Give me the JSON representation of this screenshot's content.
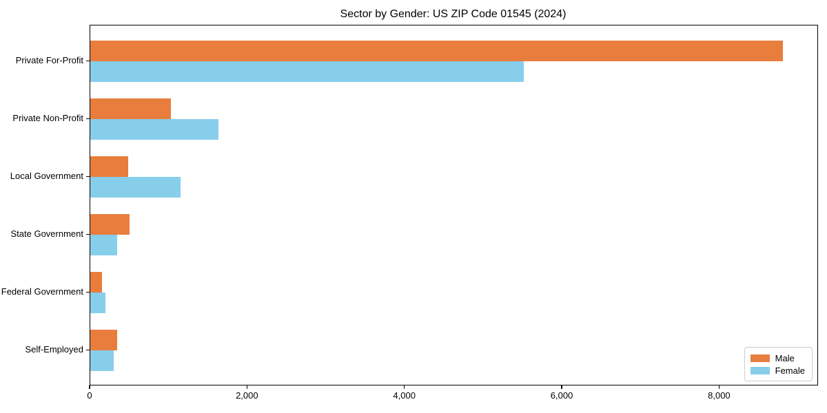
{
  "title": "Sector by Gender: US ZIP Code 01545 (2024)",
  "chart_data": {
    "type": "bar",
    "orientation": "horizontal",
    "title": "Sector by Gender: US ZIP Code 01545 (2024)",
    "categories": [
      "Private For-Profit",
      "Private Non-Profit",
      "Local Government",
      "State Government",
      "Federal Government",
      "Self-Employed"
    ],
    "series": [
      {
        "name": "Male",
        "color": "#e87d3d",
        "values": [
          8800,
          1025,
          480,
          500,
          150,
          345
        ]
      },
      {
        "name": "Female",
        "color": "#87ceeb",
        "values": [
          5505,
          1630,
          1150,
          340,
          190,
          300
        ]
      }
    ],
    "xlabel": "",
    "ylabel": "",
    "xlim": [
      0,
      9240
    ],
    "x_ticks": [
      0,
      2000,
      4000,
      6000,
      8000
    ],
    "x_tick_labels": [
      "0",
      "2,000",
      "4,000",
      "6,000",
      "8,000"
    ],
    "grid": false,
    "legend_position": "lower right"
  }
}
